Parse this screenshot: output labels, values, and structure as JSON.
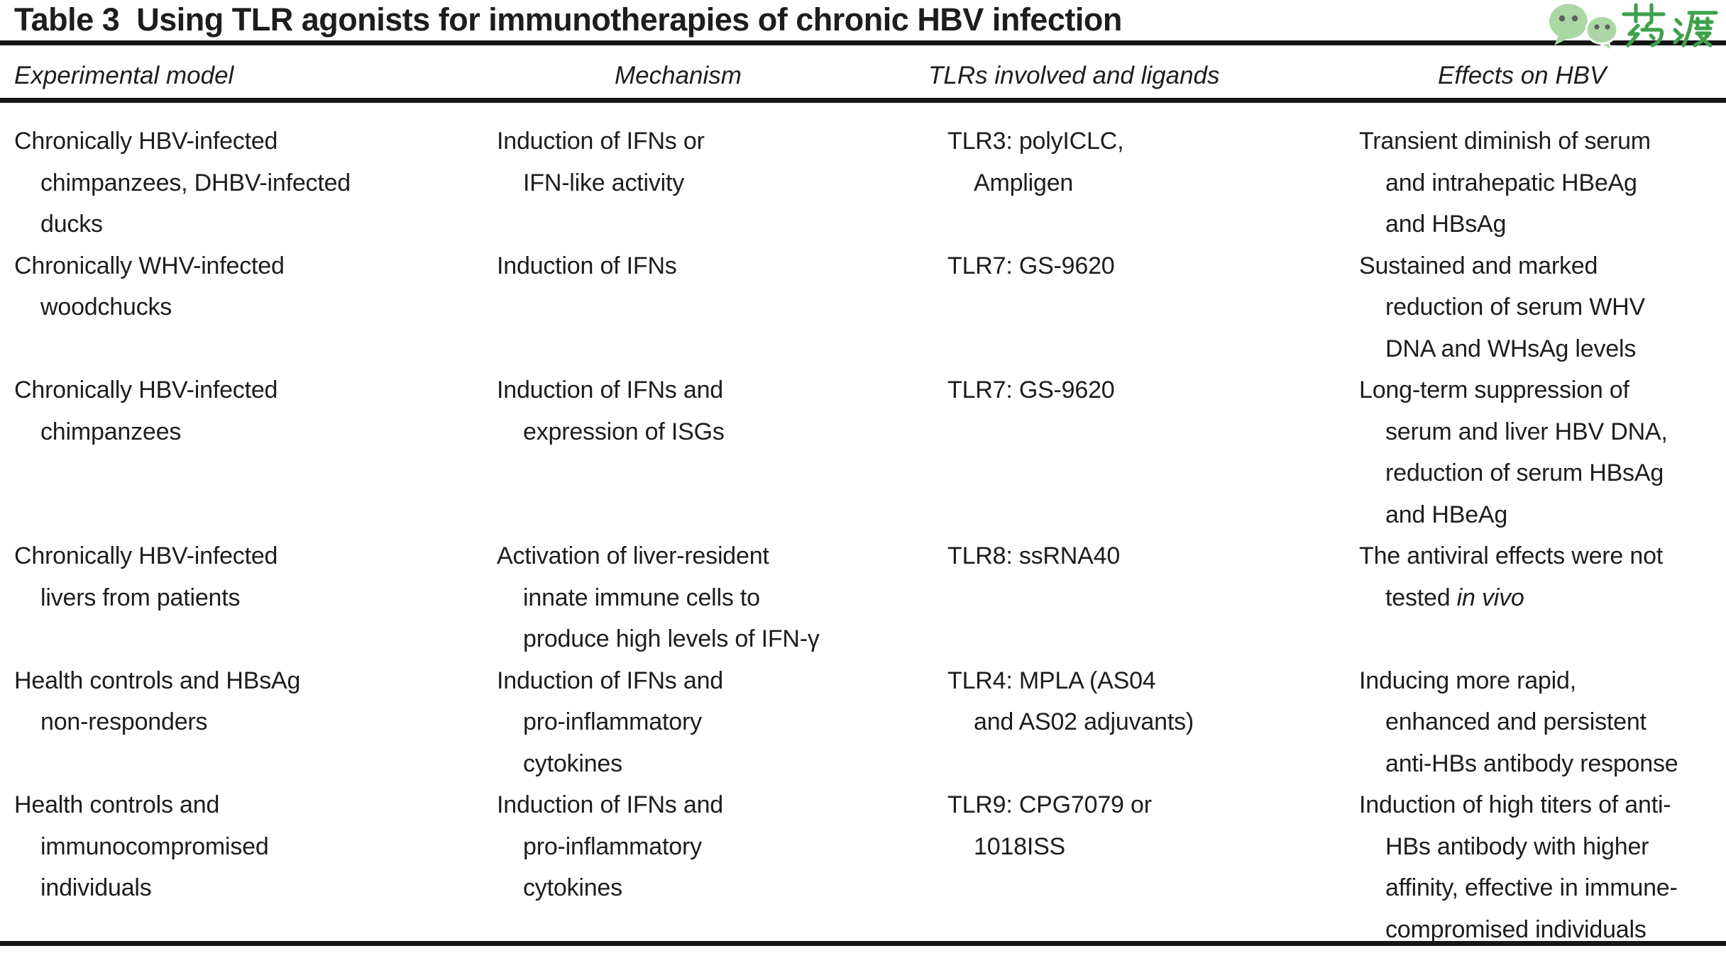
{
  "title": "Table 3  Using TLR agonists for immunotherapies of chronic HBV infection",
  "logo": {
    "brand_text": "药渡",
    "brand_color": "#3da14a",
    "bubble_color": "#aad7a4"
  },
  "colors": {
    "text": "#1d1d1d",
    "rule": "#161616"
  },
  "table": {
    "headers": [
      "Experimental model",
      "Mechanism",
      "TLRs involved and ligands",
      "Effects on HBV"
    ],
    "rows": [
      {
        "model": [
          "Chronically HBV-infected",
          "chimpanzees, DHBV-infected",
          "ducks"
        ],
        "mechanism": [
          "Induction of IFNs or",
          "IFN-like activity"
        ],
        "tlrs": [
          "TLR3: polyICLC,",
          "Ampligen"
        ],
        "effects": [
          "Transient diminish of serum",
          "and intrahepatic HBeAg",
          "and HBsAg"
        ]
      },
      {
        "model": [
          "Chronically WHV-infected",
          "woodchucks"
        ],
        "mechanism": [
          "Induction of IFNs"
        ],
        "tlrs": [
          "TLR7: GS-9620"
        ],
        "effects": [
          "Sustained and marked",
          "reduction of serum WHV",
          "DNA and WHsAg levels"
        ]
      },
      {
        "model": [
          "Chronically HBV-infected",
          "chimpanzees"
        ],
        "mechanism": [
          "Induction of IFNs and",
          "expression of ISGs"
        ],
        "tlrs": [
          "TLR7: GS-9620"
        ],
        "effects": [
          "Long-term suppression of",
          "serum and liver HBV DNA,",
          "reduction of serum HBsAg",
          "and HBeAg"
        ]
      },
      {
        "model": [
          "Chronically HBV-infected",
          "livers from patients"
        ],
        "mechanism": [
          "Activation of liver-resident",
          "innate immune cells to",
          "produce high levels of IFN-γ"
        ],
        "tlrs": [
          "TLR8: ssRNA40"
        ],
        "effects": [
          "The antiviral effects were not",
          "tested *in vivo*"
        ]
      },
      {
        "model": [
          "Health controls and HBsAg",
          "non-responders"
        ],
        "mechanism": [
          "Induction of IFNs and",
          "pro-inflammatory",
          "cytokines"
        ],
        "tlrs": [
          "TLR4: MPLA (AS04",
          "and AS02 adjuvants)"
        ],
        "effects": [
          "Inducing more rapid,",
          "enhanced and persistent",
          "anti-HBs antibody response"
        ]
      },
      {
        "model": [
          "Health controls and",
          "immunocompromised",
          "individuals"
        ],
        "mechanism": [
          "Induction of IFNs and",
          "pro-inflammatory",
          "cytokines"
        ],
        "tlrs": [
          "TLR9: CPG7079 or",
          "1018ISS"
        ],
        "effects": [
          "Induction of high titers of anti-",
          "HBs antibody with higher",
          "affinity, effective in immune-",
          "compromised individuals"
        ]
      }
    ]
  }
}
